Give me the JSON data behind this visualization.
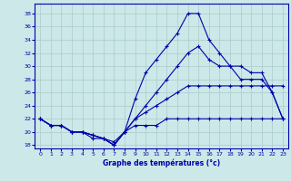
{
  "title": "Graphe des températures (°c)",
  "background_color": "#cce8e8",
  "grid_color": "#aacccc",
  "line_color": "#0000aa",
  "xlim": [
    -0.5,
    23.5
  ],
  "ylim": [
    17.5,
    39.5
  ],
  "yticks": [
    18,
    20,
    22,
    24,
    26,
    28,
    30,
    32,
    34,
    36,
    38
  ],
  "xticks": [
    0,
    1,
    2,
    3,
    4,
    5,
    6,
    7,
    8,
    9,
    10,
    11,
    12,
    13,
    14,
    15,
    16,
    17,
    18,
    19,
    20,
    21,
    22,
    23
  ],
  "line1_x": [
    0,
    1,
    2,
    3,
    4,
    5,
    6,
    7,
    8,
    9,
    10,
    11,
    12,
    13,
    14,
    15,
    16,
    17,
    18,
    19,
    20,
    21,
    22,
    23
  ],
  "line1_y": [
    22,
    21,
    21,
    20,
    20,
    19,
    19,
    18,
    20,
    21,
    21,
    21,
    22,
    22,
    22,
    22,
    22,
    22,
    22,
    22,
    22,
    22,
    22,
    22
  ],
  "line2_x": [
    0,
    1,
    2,
    3,
    4,
    5,
    6,
    7,
    8,
    9,
    10,
    11,
    12,
    13,
    14,
    15,
    16,
    17,
    18,
    19,
    20,
    21,
    22,
    23
  ],
  "line2_y": [
    22,
    21,
    21,
    20,
    20,
    19.5,
    19,
    18.5,
    20,
    22,
    23,
    24,
    25,
    26,
    27,
    27,
    27,
    27,
    27,
    27,
    27,
    27,
    27,
    27
  ],
  "line3_x": [
    0,
    1,
    2,
    3,
    4,
    5,
    6,
    7,
    8,
    9,
    10,
    11,
    12,
    13,
    14,
    15,
    16,
    17,
    18,
    19,
    20,
    21,
    22,
    23
  ],
  "line3_y": [
    22,
    21,
    21,
    20,
    20,
    19.5,
    19,
    18,
    20,
    22,
    24,
    26,
    28,
    30,
    32,
    33,
    31,
    30,
    30,
    28,
    28,
    28,
    26,
    22
  ],
  "line4_x": [
    0,
    1,
    2,
    3,
    4,
    5,
    6,
    7,
    8,
    9,
    10,
    11,
    12,
    13,
    14,
    15,
    16,
    17,
    18,
    19,
    20,
    21,
    22,
    23
  ],
  "line4_y": [
    22,
    21,
    21,
    20,
    20,
    19.5,
    19,
    18,
    20,
    25,
    29,
    31,
    33,
    35,
    38,
    38,
    34,
    32,
    30,
    30,
    29,
    29,
    26,
    22
  ]
}
